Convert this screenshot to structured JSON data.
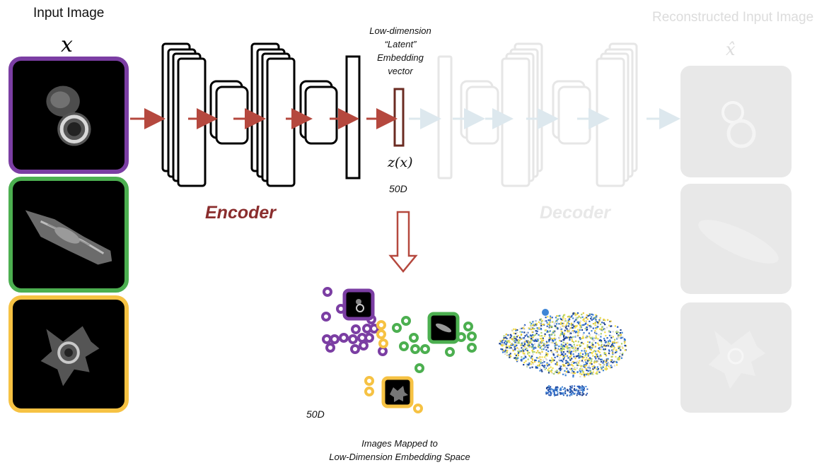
{
  "input_title": "Input Image",
  "output_title": "Reconstructed Input Image",
  "input_symbol": "x",
  "output_symbol": "x̂",
  "latent_label_lines": [
    "Low-dimension",
    "“Latent”",
    "Embedding",
    "vector"
  ],
  "latent_symbol": "z(x)",
  "latent_dim_label": "50D",
  "embedding_dim_label": "50D",
  "encoder_label": "Encoder",
  "decoder_label": "Decoder",
  "embedding_caption": [
    "Images Mapped to",
    "Low-Dimension Embedding Space"
  ],
  "colors": {
    "purple": "#7b3ea3",
    "green": "#4caf50",
    "yellow": "#f6c243",
    "arrow_red": "#b5483e",
    "latent_brown": "#6b2b22",
    "encoder_text": "#8a2d2d",
    "faded": "#e6e6e6",
    "faded_arrow": "#dde8ee"
  },
  "input_images": [
    {
      "name": "cell-round",
      "border_color": "#7b3ea3"
    },
    {
      "name": "cell-elongated",
      "border_color": "#4caf50"
    },
    {
      "name": "cell-star",
      "border_color": "#f6c243"
    }
  ]
}
